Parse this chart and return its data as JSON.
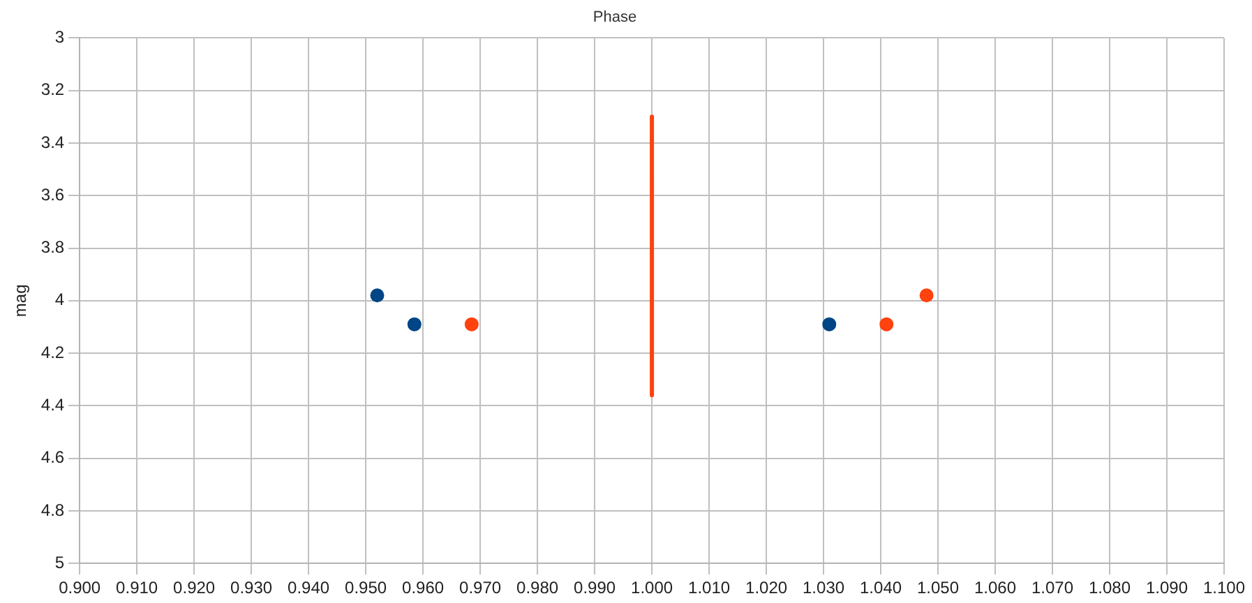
{
  "chart_data": {
    "type": "scatter",
    "title": "Phase",
    "ylabel": "mag",
    "xlim": [
      0.9,
      1.1
    ],
    "xticks": [
      {
        "value": 0.9,
        "label": "0.900"
      },
      {
        "value": 0.91,
        "label": "0.910"
      },
      {
        "value": 0.92,
        "label": "0.920"
      },
      {
        "value": 0.93,
        "label": "0.930"
      },
      {
        "value": 0.94,
        "label": "0.940"
      },
      {
        "value": 0.95,
        "label": "0.950"
      },
      {
        "value": 0.96,
        "label": "0.960"
      },
      {
        "value": 0.97,
        "label": "0.970"
      },
      {
        "value": 0.98,
        "label": "0.980"
      },
      {
        "value": 0.99,
        "label": "0.990"
      },
      {
        "value": 1.0,
        "label": "1.000"
      },
      {
        "value": 1.01,
        "label": "1.010"
      },
      {
        "value": 1.02,
        "label": "1.020"
      },
      {
        "value": 1.03,
        "label": "1.030"
      },
      {
        "value": 1.04,
        "label": "1.040"
      },
      {
        "value": 1.05,
        "label": "1.050"
      },
      {
        "value": 1.06,
        "label": "1.060"
      },
      {
        "value": 1.07,
        "label": "1.070"
      },
      {
        "value": 1.08,
        "label": "1.080"
      },
      {
        "value": 1.09,
        "label": "1.090"
      },
      {
        "value": 1.1,
        "label": "1.100"
      }
    ],
    "ylim": [
      5,
      3
    ],
    "yticks": [
      3,
      3.2,
      3.4,
      3.6,
      3.8,
      4,
      4.2,
      4.4,
      4.6,
      4.8,
      5
    ],
    "grid": true,
    "legend": false,
    "marker": "circle",
    "series": [
      {
        "color": "#004586",
        "x": [
          0.952,
          0.9585,
          1.031
        ],
        "values": [
          3.98,
          4.09,
          4.09
        ]
      },
      {
        "color": "#ff420e",
        "x": [
          0.9685,
          1.041,
          1.048
        ],
        "values": [
          4.09,
          4.09,
          3.98
        ]
      },
      {
        "type": "line",
        "color": "#ff420e",
        "marker": "none",
        "x": [
          1.0,
          1.0
        ],
        "values": [
          3.3,
          4.36
        ]
      }
    ]
  }
}
